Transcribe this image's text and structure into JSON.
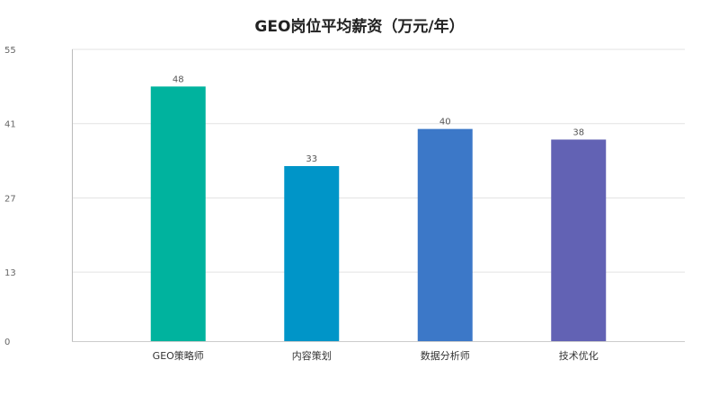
{
  "chart_data": {
    "type": "bar",
    "title": "GEO岗位平均薪资（万元/年）",
    "xlabel": "",
    "ylabel": "",
    "categories": [
      "GEO策略师",
      "内容策划",
      "数据分析师",
      "技术优化"
    ],
    "values": [
      48,
      33,
      40,
      38
    ],
    "colors": [
      "#00b39e",
      "#0095c8",
      "#3c78c8",
      "#6262b4"
    ],
    "yticks": [
      0,
      13,
      27,
      41,
      55
    ],
    "ylim": [
      0,
      55
    ],
    "grid": true,
    "legend": "none"
  }
}
